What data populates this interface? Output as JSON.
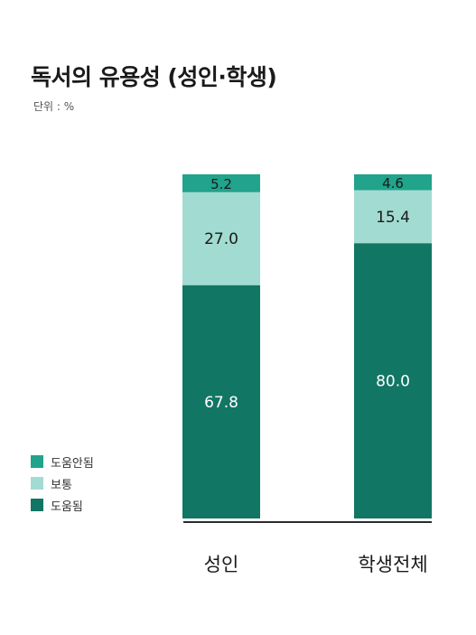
{
  "chart_data": {
    "type": "bar",
    "stacked": true,
    "title": "독서의 유용성 (성인·학생)",
    "unit_label": "단위 : %",
    "categories": [
      "성인",
      "학생전체"
    ],
    "series": [
      {
        "name": "도움됨",
        "values": [
          67.8,
          80.0
        ],
        "labels": [
          "67.8",
          "80.0"
        ],
        "color": "#127664",
        "label_color": "#ffffff"
      },
      {
        "name": "보통",
        "values": [
          27.0,
          15.4
        ],
        "labels": [
          "27.0",
          "15.4"
        ],
        "color": "#a2dbd2",
        "label_color": "#1a1a1a"
      },
      {
        "name": "도움안됨",
        "values": [
          5.2,
          4.6
        ],
        "labels": [
          "5.2",
          "4.6"
        ],
        "color": "#21a38c",
        "label_color": "#1a1a1a"
      }
    ],
    "legend_order": [
      "도움안됨",
      "보통",
      "도움됨"
    ],
    "ylim": [
      0,
      100
    ],
    "grid": false,
    "legend_position": "bottom-left"
  }
}
